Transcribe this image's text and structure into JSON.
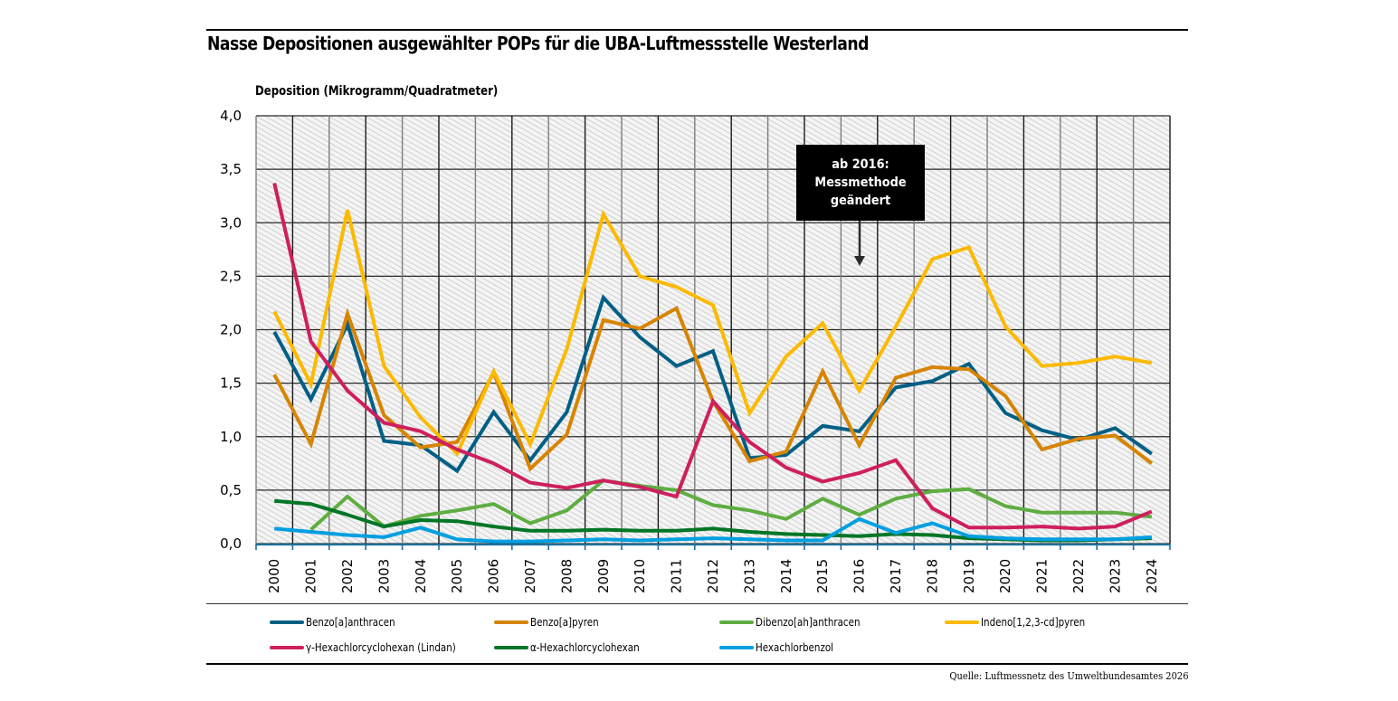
{
  "title": "Nasse Depositionen ausgewählter POPs für die UBA-Luftmessstelle Westerland",
  "source": "Quelle: Luftmessnetz des Umweltbundesamtes 2026",
  "annotation": {
    "lines": [
      "ab 2016:",
      "Messmethode",
      "geändert"
    ],
    "points_to_year": "2016"
  },
  "chart_data": {
    "type": "line",
    "title": "Nasse Depositionen ausgewählter POPs für die UBA-Luftmessstelle Westerland",
    "xlabel": "",
    "ylabel": "Deposition (Mikrogramm/Quadratmeter)",
    "ylim": [
      0,
      4.0
    ],
    "yticks": [
      "0,0",
      "0,5",
      "1,0",
      "1,5",
      "2,0",
      "2,5",
      "3,0",
      "3,5",
      "4,0"
    ],
    "ytick_values": [
      0,
      0.5,
      1.0,
      1.5,
      2.0,
      2.5,
      3.0,
      3.5,
      4.0
    ],
    "grid": true,
    "legend_position": "bottom",
    "categories": [
      "2000",
      "2001",
      "2002",
      "2003",
      "2004",
      "2005",
      "2006",
      "2007",
      "2008",
      "2009",
      "2010",
      "2011",
      "2012",
      "2013",
      "2014",
      "2015",
      "2016",
      "2017",
      "2018",
      "2019",
      "2020",
      "2021",
      "2022",
      "2023",
      "2024"
    ],
    "series": [
      {
        "name": "Benzo[a]anthracen",
        "color": "#005f85",
        "values": [
          1.98,
          1.35,
          2.05,
          0.96,
          0.92,
          0.68,
          1.23,
          0.78,
          1.23,
          2.3,
          1.93,
          1.66,
          1.8,
          0.8,
          0.83,
          1.1,
          1.05,
          1.46,
          1.52,
          1.68,
          1.22,
          1.06,
          0.97,
          1.08,
          0.84
        ]
      },
      {
        "name": "Benzo[a]pyren",
        "color": "#d78400",
        "values": [
          1.58,
          0.93,
          2.15,
          1.2,
          0.9,
          0.95,
          1.6,
          0.7,
          1.02,
          2.09,
          2.01,
          2.2,
          1.33,
          0.77,
          0.86,
          1.61,
          0.92,
          1.55,
          1.65,
          1.63,
          1.38,
          0.88,
          0.98,
          1.01,
          0.75
        ]
      },
      {
        "name": "Dibenzo[ah]anthracen",
        "color": "#5fad41",
        "values": [
          null,
          0.13,
          0.44,
          0.16,
          0.26,
          0.31,
          0.37,
          0.19,
          0.31,
          0.59,
          0.54,
          0.5,
          0.36,
          0.31,
          0.23,
          0.42,
          0.27,
          0.42,
          0.49,
          0.51,
          0.35,
          0.29,
          0.29,
          0.29,
          0.25
        ]
      },
      {
        "name": "Indeno[1,2,3-cd]pyren",
        "color": "#fbba00",
        "values": [
          2.17,
          1.49,
          3.12,
          1.66,
          1.18,
          0.84,
          1.61,
          0.93,
          1.82,
          3.08,
          2.5,
          2.4,
          2.23,
          1.22,
          1.75,
          2.06,
          1.43,
          2.03,
          2.66,
          2.77,
          2.03,
          1.66,
          1.69,
          1.75,
          1.69
        ]
      },
      {
        "name": "γ-Hexachlorcyclohexan (Lindan)",
        "color": "#ce1f5e",
        "values": [
          3.37,
          1.89,
          1.43,
          1.13,
          1.05,
          0.88,
          0.75,
          0.57,
          0.52,
          0.59,
          0.53,
          0.44,
          1.33,
          0.95,
          0.71,
          0.58,
          0.66,
          0.78,
          0.33,
          0.15,
          0.15,
          0.16,
          0.14,
          0.16,
          0.3
        ]
      },
      {
        "name": "α-Hexachlorcyclohexan",
        "color": "#007626",
        "values": [
          0.4,
          0.37,
          0.27,
          0.16,
          0.22,
          0.21,
          0.16,
          0.12,
          0.12,
          0.13,
          0.12,
          0.12,
          0.14,
          0.11,
          0.09,
          0.08,
          0.07,
          0.09,
          0.08,
          0.05,
          0.04,
          0.03,
          0.03,
          0.04,
          0.05
        ]
      },
      {
        "name": "Hexachlorbenzol",
        "color": "#009fe0",
        "values": [
          0.14,
          0.11,
          0.08,
          0.06,
          0.15,
          0.04,
          0.02,
          0.02,
          0.03,
          0.04,
          0.03,
          0.04,
          0.05,
          0.04,
          0.03,
          0.03,
          0.23,
          0.1,
          0.19,
          0.07,
          0.05,
          0.04,
          0.04,
          0.04,
          0.06
        ]
      }
    ],
    "legend_rows": [
      [
        "Benzo[a]anthracen",
        "Benzo[a]pyren",
        "Dibenzo[ah]anthracen",
        "Indeno[1,2,3-cd]pyren"
      ],
      [
        "γ-Hexachlorcyclohexan (Lindan)",
        "α-Hexachlorcyclohexan",
        "Hexachlorbenzol"
      ]
    ]
  }
}
